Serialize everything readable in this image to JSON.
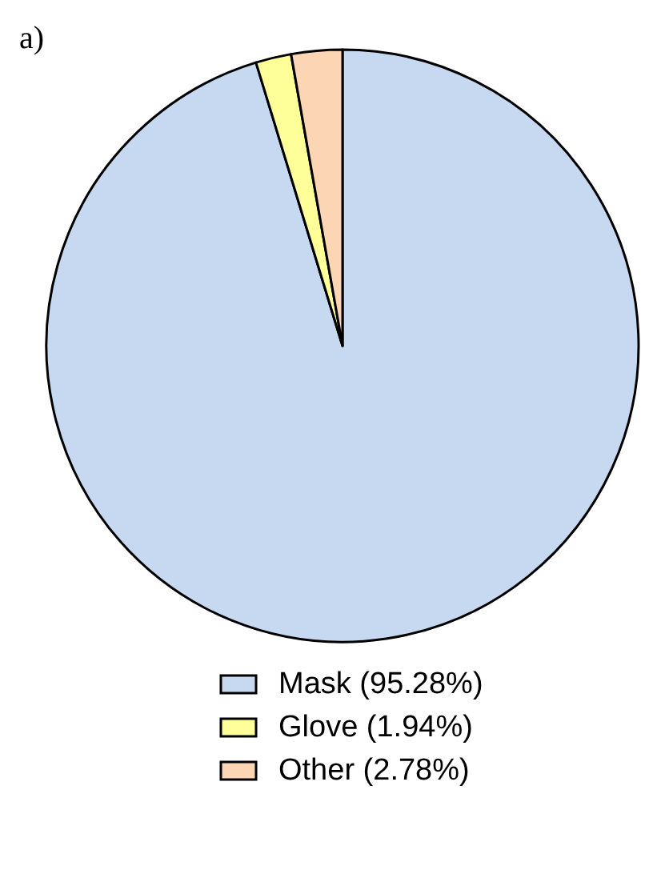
{
  "chart_data": {
    "type": "pie",
    "title": "a)",
    "categories": [
      "Mask (95.28%)",
      "Glove (1.94%)",
      "Other (2.78%)"
    ],
    "values": [
      95.28,
      1.94,
      2.78
    ],
    "colors": [
      "#c6d9f1",
      "#ffff99",
      "#fcd5b5"
    ],
    "legend": "bottom"
  }
}
